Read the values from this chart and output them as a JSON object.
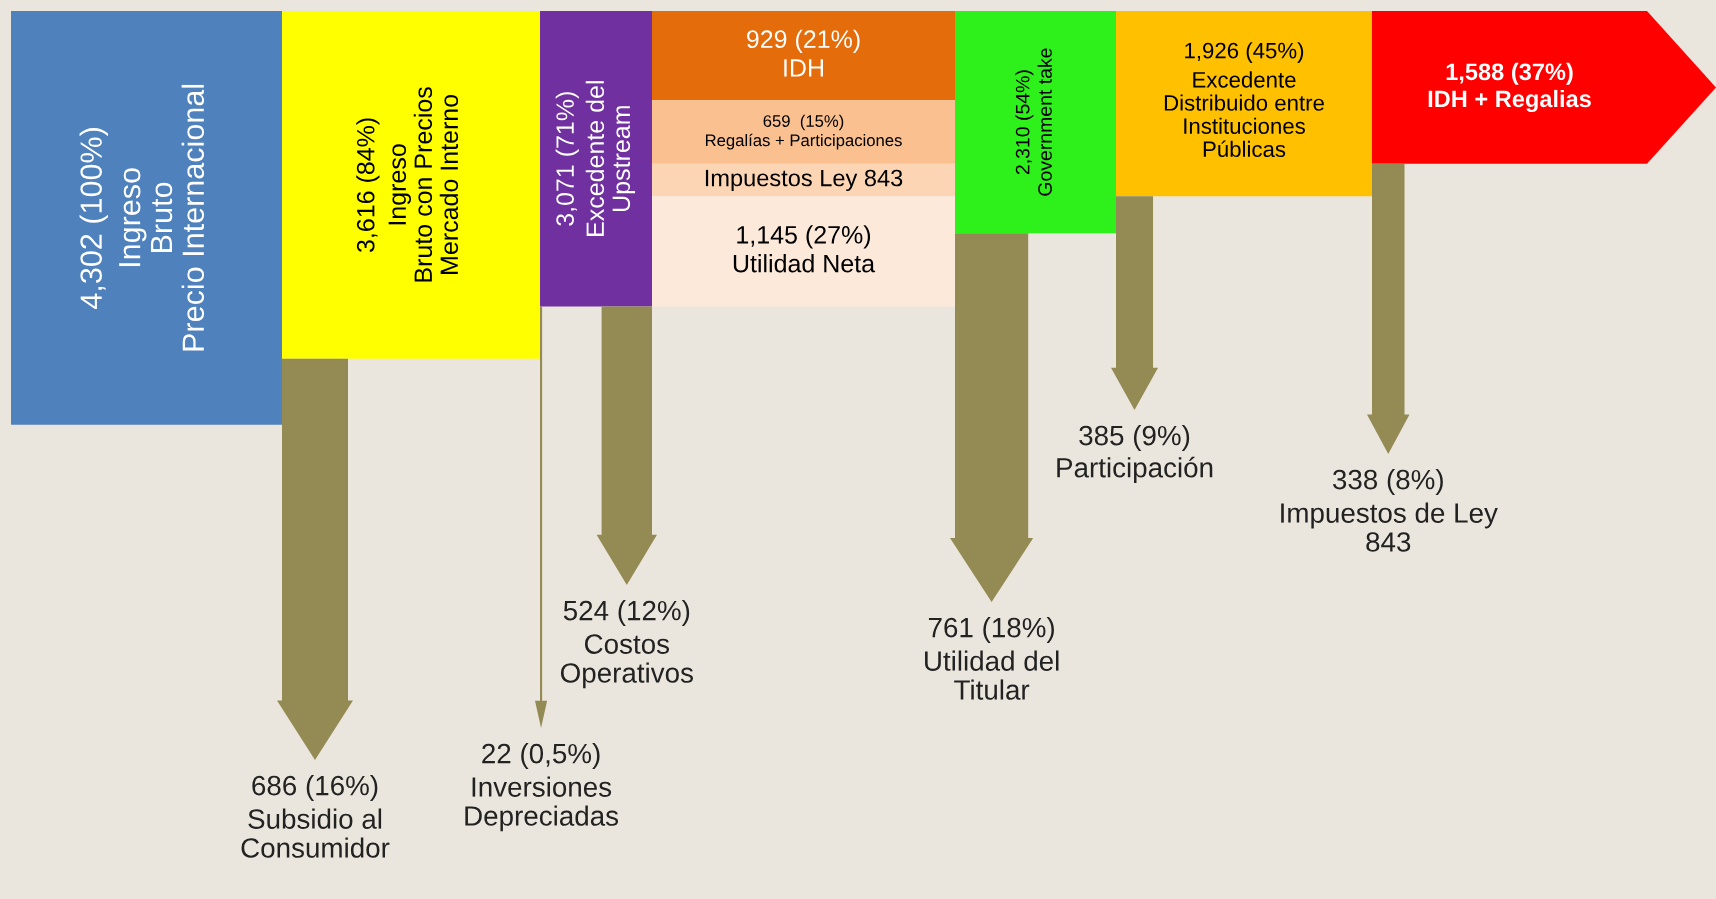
{
  "chart_data": {
    "type": "other",
    "categories": [
      "Ingreso\nBruto\nPrecio Internacional",
      "Subsidio al\nConsumidor",
      "Ingreso\nBruto con Precios\nMercado Interno",
      "Inversiones\nDepreciadas",
      "Costos\nOperativos",
      "Excedente del\nUpstream",
      "IDH",
      "Regalías + Participaciones",
      "Impuestos Ley 843",
      "Utilidad Neta",
      "Utilidad del\nTitular",
      "Government take",
      "Participación",
      "Excedente\nDistribuido entre\nInstituciones\nPúblicas",
      "Impuestos de Ley\n843",
      "IDH + Regalias"
    ],
    "values": [
      4302,
      686,
      3616,
      22,
      524,
      3071,
      929,
      659,
      null,
      1145,
      761,
      2310,
      385,
      1926,
      338,
      1588
    ],
    "value_labels": [
      "4,302 (100%)",
      "686 (16%)",
      "3,616 (84%)",
      "22 (0,5%)",
      "524 (12%)",
      "3,071 (71%)",
      "929 (21%)",
      "659  (15%)",
      null,
      "1,145 (27%)",
      "761 (18%)",
      "2,310 (54%)",
      "385 (9%)",
      "1,926 (45%)",
      "338 (8%)",
      "1,588 (37%)"
    ],
    "colors": [
      "#4f81bd",
      "#948a54",
      "#ffff00",
      "#948a54",
      "#948a54",
      "#7030a0",
      "#e46c0a",
      "#fac090",
      "#fcd5b5",
      "#fde9d9",
      "#948a54",
      "#2ef01a",
      "#948a54",
      "#ffc000",
      "#948a54",
      "#ff0000"
    ]
  }
}
